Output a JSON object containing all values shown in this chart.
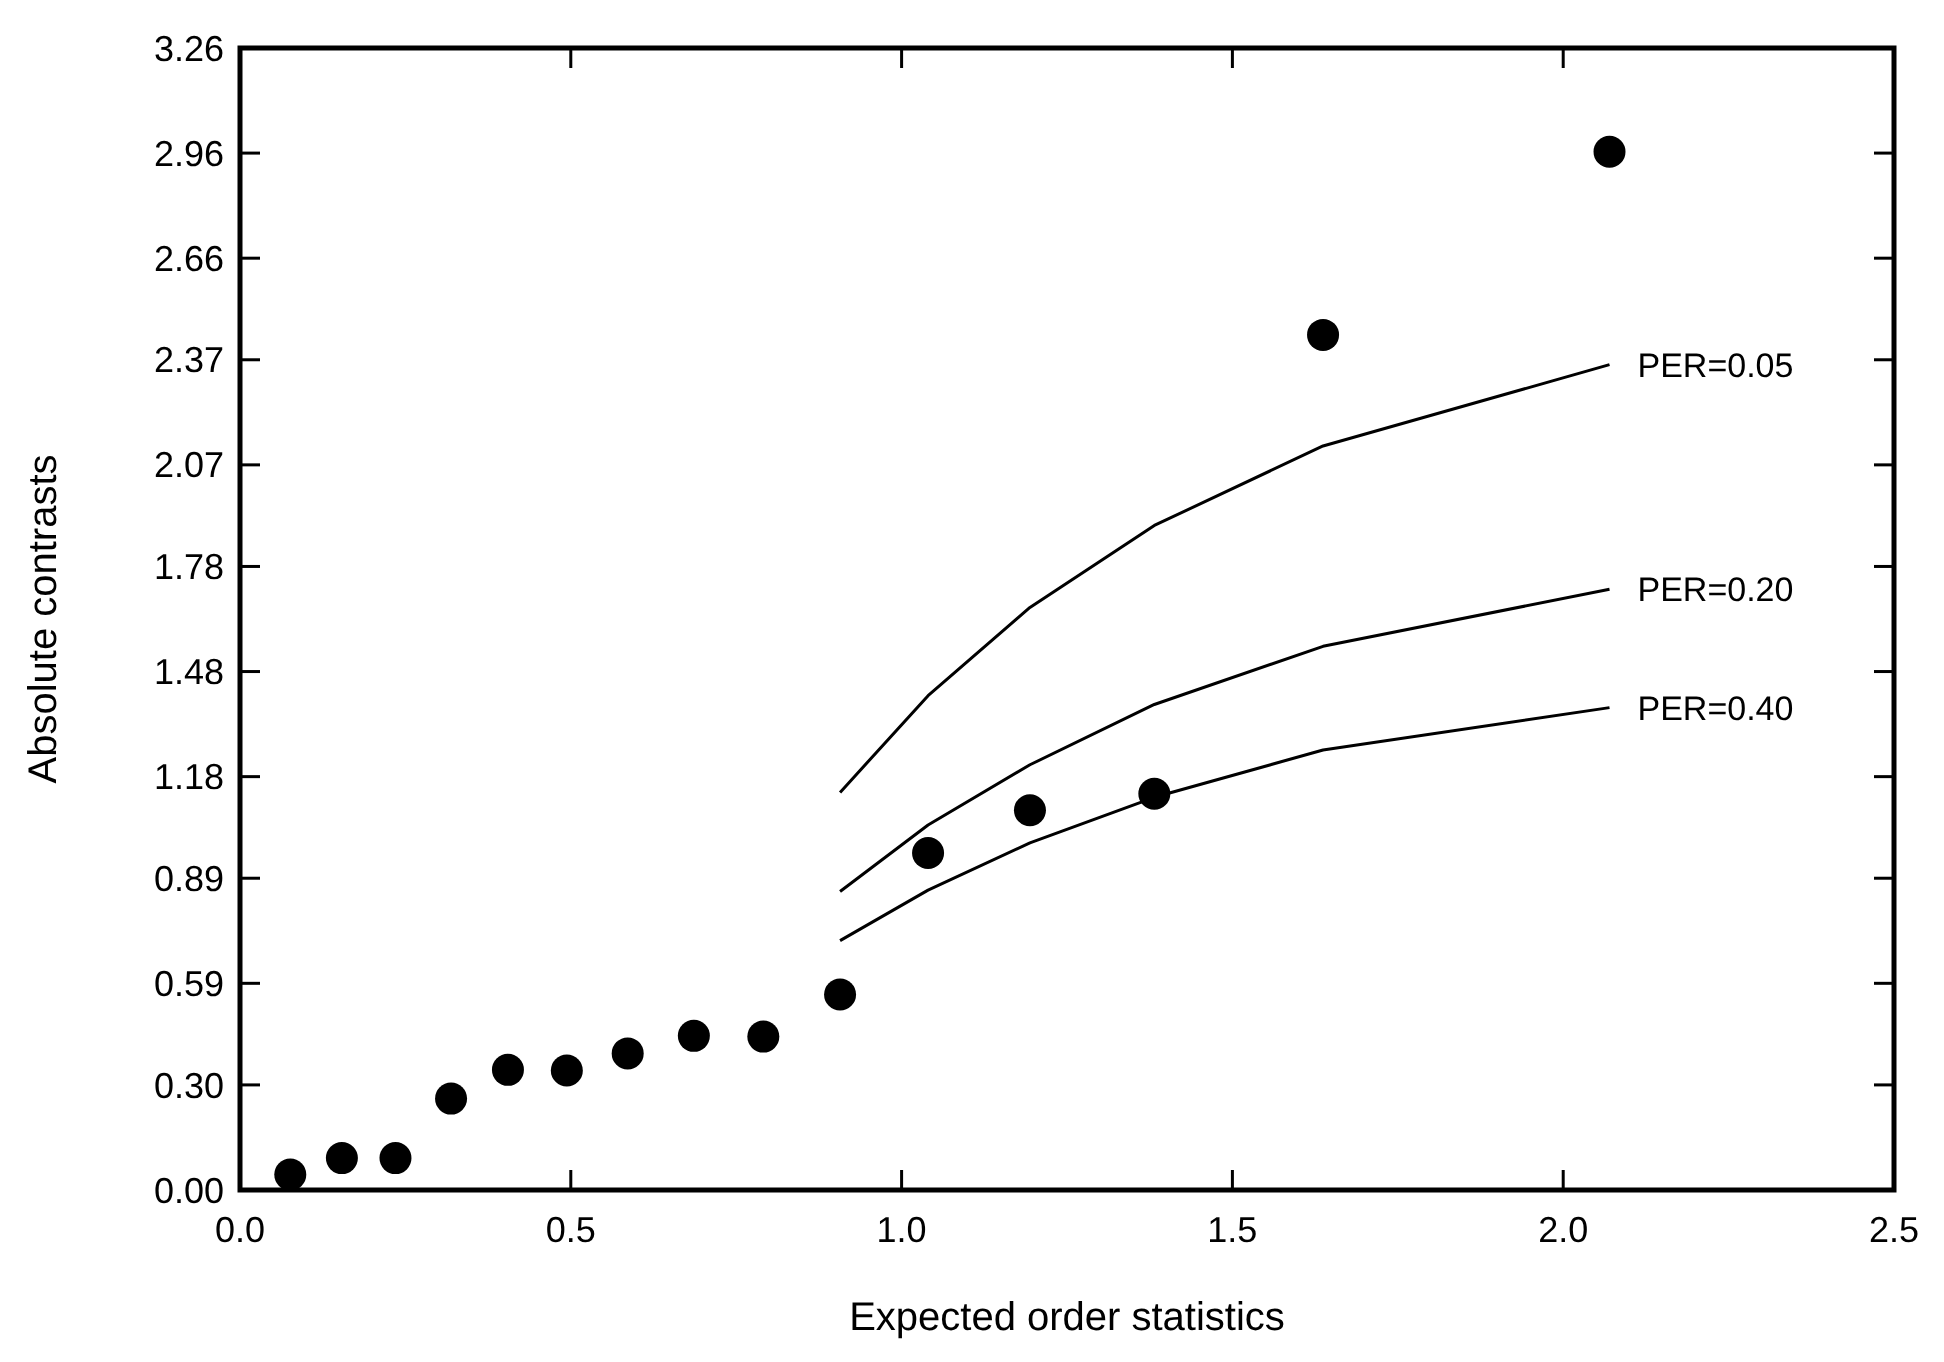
{
  "chart_data": {
    "type": "scatter",
    "xlabel": "Expected order statistics",
    "ylabel": "Absolute contrasts",
    "xlim": [
      0,
      2.5
    ],
    "xticks": [
      {
        "value": 0,
        "label": "0.0"
      },
      0.5,
      {
        "value": 1,
        "label": "1.0"
      },
      1.5,
      {
        "value": 2,
        "label": "2.0"
      },
      2.5
    ],
    "ylim": [
      0,
      3.26
    ],
    "yticks": [
      {
        "value": 0,
        "label": "0.00"
      },
      {
        "value": 0.3,
        "label": "0.30"
      },
      0.59,
      0.89,
      1.18,
      1.48,
      1.78,
      2.07,
      2.37,
      2.66,
      2.96,
      3.26
    ],
    "grid": false,
    "legend": "right",
    "series": [
      {
        "marker": "circle",
        "color": "#000000",
        "x": [
          0.076,
          0.154,
          0.235,
          0.319,
          0.405,
          0.494,
          0.586,
          0.686,
          0.791,
          0.907,
          1.04,
          1.194,
          1.382,
          1.637,
          2.07
        ],
        "values": [
          0.044,
          0.091,
          0.091,
          0.261,
          0.343,
          0.341,
          0.39,
          0.44,
          0.438,
          0.558,
          0.962,
          1.084,
          1.131,
          2.441,
          2.964
        ]
      },
      {
        "type": "line",
        "name": "PER=0.05",
        "color": "#000000",
        "line_style": "solid",
        "x": [
          0.907,
          1.04,
          1.194,
          1.382,
          1.637,
          2.07
        ],
        "values": [
          1.135,
          1.411,
          1.663,
          1.897,
          2.124,
          2.356
        ]
      },
      {
        "type": "line",
        "name": "PER=0.20",
        "color": "#000000",
        "line_style": "solid",
        "x": [
          0.907,
          1.04,
          1.194,
          1.382,
          1.637,
          2.07
        ],
        "values": [
          0.852,
          1.042,
          1.214,
          1.386,
          1.552,
          1.715
        ]
      },
      {
        "type": "line",
        "name": "PER=0.40",
        "color": "#000000",
        "line_style": "solid",
        "x": [
          0.907,
          1.04,
          1.194,
          1.382,
          1.637,
          2.07
        ],
        "values": [
          0.712,
          0.856,
          0.991,
          1.121,
          1.256,
          1.377
        ]
      }
    ]
  }
}
